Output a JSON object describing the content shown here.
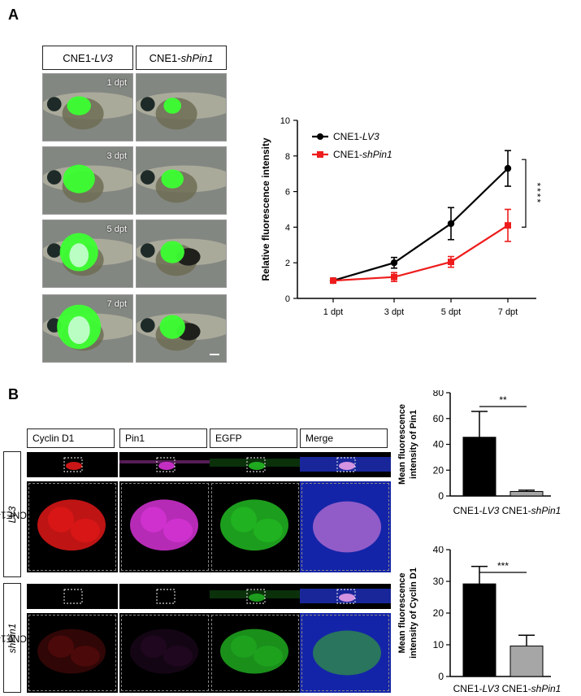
{
  "panel_a": {
    "letter": "A",
    "column_headers": [
      {
        "prefix": "CNE1-",
        "italic": "LV3"
      },
      {
        "prefix": "CNE1-",
        "italic": "shPin1"
      }
    ],
    "row_labels": [
      "1 dpt",
      "3 dpt",
      "5 dpt",
      "7 dpt"
    ]
  },
  "panel_b": {
    "letter": "B",
    "column_headers": [
      "Cyclin D1",
      "Pin1",
      "EGFP",
      "Merge"
    ],
    "row_groups": [
      {
        "prefix": "CNE1-",
        "italic": "LV3"
      },
      {
        "prefix": "CNE1-",
        "italic": "shPin1"
      }
    ]
  },
  "colors": {
    "black": "#000000",
    "red": "#ee1c1c",
    "gray": "#a6a6a6"
  },
  "chart_data": [
    {
      "type": "line",
      "x": [
        "1 dpt",
        "3 dpt",
        "5 dpt",
        "7 dpt"
      ],
      "ylabel": "Relative fluorescence intensity",
      "ylim": [
        0,
        10
      ],
      "yticks": [
        0,
        2,
        4,
        6,
        8,
        10
      ],
      "legend_position": "top-left",
      "series": [
        {
          "name": "CNE1-LV3",
          "name_prefix": "CNE1-",
          "name_italic": "LV3",
          "values": [
            1.0,
            2.0,
            4.2,
            7.3
          ],
          "errors": [
            0.05,
            0.3,
            0.9,
            1.0
          ],
          "color": "#000000"
        },
        {
          "name": "CNE1-shPin1",
          "name_prefix": "CNE1-",
          "name_italic": "shPin1",
          "values": [
            1.0,
            1.2,
            2.05,
            4.1
          ],
          "errors": [
            0.05,
            0.25,
            0.3,
            0.9
          ],
          "color": "#ee1c1c"
        }
      ],
      "significance": "****"
    },
    {
      "type": "bar",
      "ylabel_lines": [
        "Mean fluorescence",
        "intensity of Pin1"
      ],
      "ylim": [
        0,
        80
      ],
      "yticks": [
        0,
        20,
        40,
        60,
        80
      ],
      "categories": [
        {
          "prefix": "CNE1-",
          "italic": "LV3"
        },
        {
          "prefix": "CNE1-",
          "italic": "shPin1"
        }
      ],
      "values": [
        45.5,
        3.5
      ],
      "errors": [
        20,
        1
      ],
      "colors": [
        "#000000",
        "#a6a6a6"
      ],
      "significance": "**"
    },
    {
      "type": "bar",
      "ylabel_lines": [
        "Mean fluorescence",
        "intensity of Cyclin D1"
      ],
      "ylim": [
        0,
        40
      ],
      "yticks": [
        0,
        10,
        20,
        30,
        40
      ],
      "categories": [
        {
          "prefix": "CNE1-",
          "italic": "LV3"
        },
        {
          "prefix": "CNE1-",
          "italic": "shPin1"
        }
      ],
      "values": [
        29.2,
        9.6
      ],
      "errors": [
        5.5,
        3.4
      ],
      "colors": [
        "#000000",
        "#a6a6a6"
      ],
      "significance": "***"
    }
  ]
}
